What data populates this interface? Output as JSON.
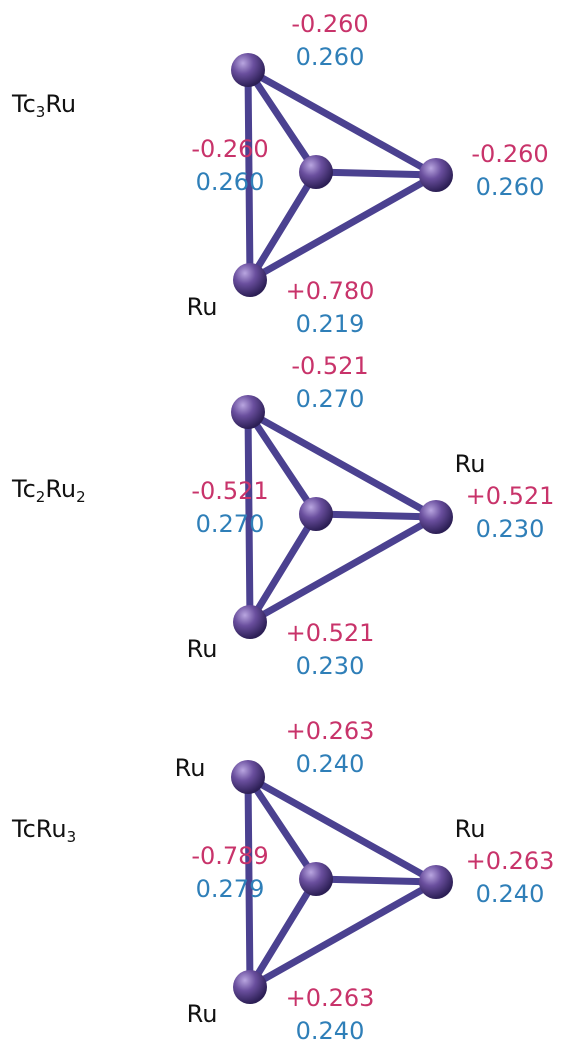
{
  "clusters": [
    {
      "formula": [
        {
          "text": "Tc",
          "sub": false
        },
        {
          "text": "3",
          "sub": true
        },
        {
          "text": "Ru",
          "sub": false
        }
      ],
      "atoms": [
        {
          "charge": "-0.260",
          "value": "0.260"
        },
        {
          "charge": "-0.260",
          "value": "0.260"
        },
        {
          "charge": "-0.260",
          "value": "0.260"
        },
        {
          "charge": "+0.780",
          "value": "0.219",
          "label": "Ru"
        }
      ]
    },
    {
      "formula": [
        {
          "text": "Tc",
          "sub": false
        },
        {
          "text": "2",
          "sub": true
        },
        {
          "text": "Ru",
          "sub": false
        },
        {
          "text": "2",
          "sub": true
        }
      ],
      "atoms": [
        {
          "charge": "-0.521",
          "value": "0.270"
        },
        {
          "charge": "-0.521",
          "value": "0.270"
        },
        {
          "charge": "+0.521",
          "value": "0.230",
          "label": "Ru"
        },
        {
          "charge": "+0.521",
          "value": "0.230",
          "label": "Ru"
        }
      ]
    },
    {
      "formula": [
        {
          "text": "TcRu",
          "sub": false
        },
        {
          "text": "3",
          "sub": true
        }
      ],
      "atoms": [
        {
          "charge": "+0.263",
          "value": "0.240",
          "label": "Ru"
        },
        {
          "charge": "-0.789",
          "value": "0.279"
        },
        {
          "charge": "+0.263",
          "value": "0.240",
          "label": "Ru"
        },
        {
          "charge": "+0.263",
          "value": "0.240",
          "label": "Ru"
        }
      ]
    }
  ]
}
